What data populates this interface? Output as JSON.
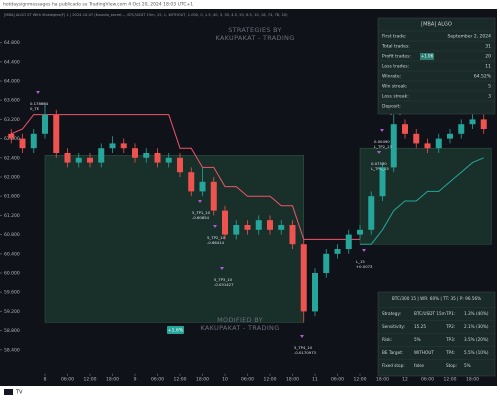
{
  "header": {
    "publisher": "hotdaysignmessages ha publicado su TradingView.com 4 Oct 20, 2024 18:03 UTC+1",
    "indicator": "[MBA] ALGO ST With Strategies(F) 1 | 2024-10-07 (Kusnda_secret..., BTC/USDT 15m, 15, 1, WITHOUT, 1.000, 0, 1.5, 40, 3, 30, 4.5, 20, 6.5, 10, 16, 74, 78, 20)"
  },
  "chart_data": {
    "type": "candlestick",
    "x": [
      -9,
      -6,
      -3,
      0,
      3,
      6,
      9,
      12,
      15,
      18,
      21,
      24,
      27,
      30,
      33,
      36,
      39,
      42,
      45,
      48,
      51,
      54,
      57,
      60,
      63,
      66,
      69,
      72,
      75,
      78,
      81,
      84,
      87,
      90,
      93,
      96,
      99,
      102,
      105,
      108,
      111,
      114,
      117
    ],
    "open": [
      62.9,
      62.8,
      62.6,
      62.9,
      63.3,
      62.5,
      62.3,
      62.4,
      62.3,
      62.6,
      62.7,
      62.6,
      62.4,
      62.5,
      62.3,
      62.4,
      62.1,
      61.7,
      61.9,
      61.3,
      60.8,
      61.0,
      60.9,
      61.1,
      60.9,
      61.0,
      60.6,
      59.2,
      60.0,
      60.4,
      60.5,
      60.8,
      60.9,
      61.6,
      62.2,
      63.1,
      62.9,
      62.7,
      62.6,
      62.8,
      62.9,
      63.1,
      63.2
    ],
    "high": [
      63.0,
      62.9,
      63.0,
      63.55,
      63.4,
      62.6,
      62.5,
      62.5,
      62.7,
      62.85,
      62.8,
      62.7,
      62.6,
      62.6,
      62.5,
      62.5,
      62.2,
      62.2,
      62.0,
      61.4,
      61.1,
      61.1,
      61.2,
      61.2,
      61.1,
      61.1,
      60.7,
      60.1,
      60.5,
      60.6,
      60.9,
      61.0,
      61.7,
      62.3,
      63.3,
      63.2,
      63.0,
      62.8,
      62.9,
      63.0,
      63.2,
      63.35,
      63.3
    ],
    "low": [
      62.7,
      62.5,
      62.5,
      62.8,
      62.4,
      62.2,
      62.2,
      62.2,
      62.2,
      62.5,
      62.5,
      62.3,
      62.3,
      62.2,
      62.2,
      62.0,
      61.6,
      61.6,
      61.2,
      60.7,
      60.7,
      60.8,
      60.8,
      60.8,
      60.8,
      60.5,
      58.97,
      59.1,
      59.9,
      60.3,
      60.4,
      60.7,
      60.8,
      61.5,
      62.1,
      62.8,
      62.6,
      62.5,
      62.5,
      62.7,
      62.8,
      63.0,
      62.9
    ],
    "close": [
      62.8,
      62.6,
      62.9,
      63.3,
      62.5,
      62.3,
      62.4,
      62.3,
      62.6,
      62.7,
      62.6,
      62.4,
      62.5,
      62.3,
      62.4,
      62.1,
      61.7,
      61.9,
      61.3,
      60.8,
      61.0,
      60.9,
      61.1,
      60.9,
      61.0,
      60.6,
      59.2,
      60.0,
      60.4,
      60.5,
      60.8,
      60.9,
      61.6,
      62.2,
      63.1,
      62.9,
      62.7,
      62.6,
      62.8,
      62.9,
      63.1,
      63.2,
      63.0
    ],
    "up_color": "#26a69a",
    "down_color": "#ef5350",
    "lines": [
      {
        "color": "#f0546b",
        "values": [
          62.9,
          63.0,
          63.3,
          63.3,
          63.3,
          63.3,
          63.3,
          63.3,
          63.3,
          63.3,
          63.3,
          63.3,
          63.3,
          63.3,
          63.3,
          62.6,
          62.6,
          62.2,
          62.2,
          61.8,
          61.8,
          61.6,
          61.6,
          61.6,
          61.4,
          61.4,
          60.7,
          60.7,
          60.7,
          60.7,
          60.7,
          60.7,
          null,
          null,
          null,
          63.5,
          63.5,
          63.4,
          63.4,
          63.4,
          63.4,
          63.4,
          63.4
        ]
      },
      {
        "color": "#26a69a",
        "values": [
          null,
          null,
          null,
          null,
          null,
          null,
          null,
          null,
          null,
          null,
          null,
          null,
          null,
          null,
          null,
          null,
          null,
          null,
          null,
          null,
          null,
          null,
          null,
          null,
          null,
          null,
          null,
          null,
          null,
          null,
          null,
          60.6,
          60.6,
          60.9,
          61.3,
          61.5,
          61.5,
          61.7,
          61.7,
          61.9,
          62.1,
          62.3,
          62.4
        ]
      }
    ],
    "zones": [
      {
        "x": [
          0,
          69
        ],
        "y": [
          58.97,
          62.45
        ]
      },
      {
        "x": [
          84,
          119
        ],
        "y": [
          60.6,
          62.6
        ]
      }
    ],
    "zone_color": "#1d3a30",
    "xlim": [
      -11.2,
      120
    ],
    "ylim": [
      57.9,
      65.5
    ],
    "yticks": [
      {
        "value": 64.8,
        "label": "64.800"
      },
      {
        "value": 64.4,
        "label": "64.400"
      },
      {
        "value": 64.0,
        "label": "64.000"
      },
      {
        "value": 63.6,
        "label": "63.600"
      },
      {
        "value": 63.2,
        "label": "63.200"
      },
      {
        "value": 62.8,
        "label": "62.800"
      },
      {
        "value": 62.4,
        "label": "62.400"
      },
      {
        "value": 62.0,
        "label": "62.000"
      },
      {
        "value": 61.6,
        "label": "61.600"
      },
      {
        "value": 61.2,
        "label": "61.200"
      },
      {
        "value": 60.8,
        "label": "60.800"
      },
      {
        "value": 60.4,
        "label": "60.400"
      },
      {
        "value": 60.0,
        "label": "60.000"
      },
      {
        "value": 59.6,
        "label": "59.600"
      },
      {
        "value": 59.2,
        "label": "59.200"
      },
      {
        "value": 58.8,
        "label": "58.800"
      },
      {
        "value": 58.4,
        "label": "58.400"
      }
    ],
    "xticks": [
      {
        "value": 0,
        "label": "8"
      },
      {
        "value": 6,
        "label": "06:00"
      },
      {
        "value": 12,
        "label": "12:00"
      },
      {
        "value": 18,
        "label": "18:00"
      },
      {
        "value": 24,
        "label": "9"
      },
      {
        "value": 30,
        "label": "06:00"
      },
      {
        "value": 36,
        "label": "12:00"
      },
      {
        "value": 42,
        "label": "18:00"
      },
      {
        "value": 48,
        "label": "10"
      },
      {
        "value": 54,
        "label": "06:00"
      },
      {
        "value": 60,
        "label": "12:00"
      },
      {
        "value": 66,
        "label": "18:00"
      },
      {
        "value": 72,
        "label": "11"
      },
      {
        "value": 78,
        "label": "06:00"
      },
      {
        "value": 84,
        "label": "12:00"
      },
      {
        "value": 90,
        "label": "18:00"
      },
      {
        "value": 96,
        "label": "12"
      },
      {
        "value": 102,
        "label": "06:00"
      },
      {
        "value": 108,
        "label": "12:00"
      },
      {
        "value": 114,
        "label": "18:00"
      }
    ],
    "annotations": [
      [
        "0.178664",
        "0_TE"
      ],
      [
        "5_TP1_10",
        "-0.60854"
      ],
      [
        "5_TP2_10",
        "-0.66414"
      ],
      [
        "5_TP3_10",
        "-0.031427"
      ],
      [
        "5_TP4_10",
        "-0.0170973"
      ],
      [
        "-0.068938",
        "L_TP3_15"
      ],
      [
        "0.00490",
        "L_TP2_13"
      ],
      [
        "0.07530",
        "L_TP1_15"
      ],
      [
        "L_15",
        "+0.0073"
      ]
    ],
    "badge": "+1.6%",
    "watermarks": [
      [
        "STRATEGIES BY",
        "KAKUPAKAT - TRADING"
      ],
      [
        "MODIFIED BY",
        "KAKUPAKAT - TRADING"
      ]
    ]
  },
  "stats_panel": {
    "title": "[MBA] ALGO",
    "rows": [
      [
        "First trade:",
        "September 2, 2024"
      ],
      [
        "Total trades:",
        "31"
      ],
      [
        "Profit trades:",
        "20"
      ],
      [
        "Loss trades:",
        "11"
      ],
      [
        "Winrate:",
        "64.52%"
      ],
      [
        "Win streak:",
        "5"
      ],
      [
        "Loss streak:",
        "3"
      ],
      [
        "Deposit:"
      ]
    ],
    "badge": "+1.06"
  },
  "settings_panel": {
    "title": "BTC/300 15 | WR: 60% | TT: 35 | P: 96.56%",
    "rows": [
      [
        "Strategy:",
        "BTC/USDT 15m",
        "TP1:",
        "1.3% (40%)"
      ],
      [
        "Sensitivity:",
        "15.25",
        "TP2:",
        "2.1% (30%)"
      ],
      [
        "Risk:",
        "5%",
        "TP3:",
        "3.5% (20%)"
      ],
      [
        "BE Target:",
        "WITHOUT",
        "TP4:",
        "5.5% (10%)"
      ],
      [
        "Fixed stop:",
        "false",
        "Stop:",
        "5%"
      ]
    ]
  }
}
